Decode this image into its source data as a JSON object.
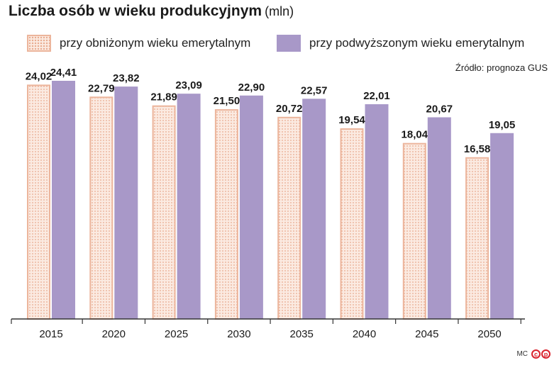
{
  "header": {
    "title": "Liczba osób w wieku produkcyjnym",
    "unit": "(mln)"
  },
  "legend": {
    "low_label": "przy obniżonym wieku emerytalnym",
    "high_label": "przy podwyższonym wieku emerytalnym"
  },
  "source": "Źródło: prognoza GUS",
  "footer": {
    "initials": "MC",
    "logo_letters": [
      "c",
      "p"
    ]
  },
  "colors": {
    "low_fill": "#fbeae1",
    "low_border": "#ecb59c",
    "high_fill": "#a898c8",
    "axis": "#333333"
  },
  "chart_data": {
    "type": "bar",
    "categories": [
      "2015",
      "2020",
      "2025",
      "2030",
      "2035",
      "2040",
      "2045",
      "2050"
    ],
    "series": [
      {
        "name": "przy obniżonym wieku emerytalnym",
        "values": [
          24.02,
          22.79,
          21.89,
          21.5,
          20.72,
          19.54,
          18.04,
          16.58
        ],
        "labels": [
          "24,02",
          "22,79",
          "21,89",
          "21,50",
          "20,72",
          "19,54",
          "18,04",
          "16,58"
        ]
      },
      {
        "name": "przy podwyższonym wieku emerytalnym",
        "values": [
          24.41,
          23.82,
          23.09,
          22.9,
          22.57,
          22.01,
          20.67,
          19.05
        ],
        "labels": [
          "24,41",
          "23,82",
          "23,09",
          "22,90",
          "22,57",
          "22,01",
          "20,67",
          "19,05"
        ]
      }
    ],
    "title": "Liczba osób w wieku produkcyjnym",
    "ylim": [
      0,
      24.41
    ],
    "grid": false,
    "legend_position": "top"
  }
}
